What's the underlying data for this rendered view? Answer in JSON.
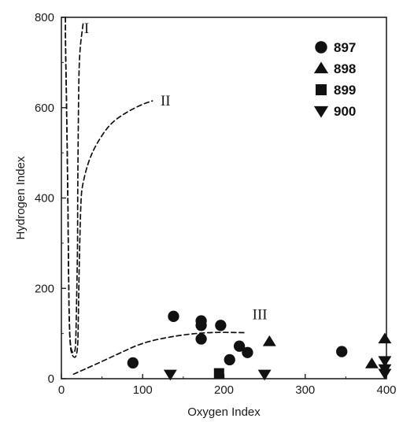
{
  "chart_data": {
    "type": "scatter",
    "title": "",
    "xlabel": "Oxygen Index",
    "ylabel": "Hydrogen Index",
    "xlim": [
      0,
      400
    ],
    "ylim": [
      0,
      800
    ],
    "xticks": [
      0,
      100,
      200,
      300,
      400
    ],
    "yticks": [
      0,
      200,
      400,
      600,
      800
    ],
    "grid": false,
    "legend_position": "top-right",
    "colors": {
      "ink": "#111111",
      "axis": "#222222"
    },
    "series": [
      {
        "name": "897",
        "marker": "circle",
        "points": [
          [
            88,
            35
          ],
          [
            138,
            138
          ],
          [
            172,
            128
          ],
          [
            172,
            118
          ],
          [
            172,
            88
          ],
          [
            196,
            118
          ],
          [
            207,
            42
          ],
          [
            219,
            72
          ],
          [
            229,
            58
          ],
          [
            345,
            60
          ]
        ]
      },
      {
        "name": "898",
        "marker": "triangle-up",
        "points": [
          [
            256,
            82
          ],
          [
            382,
            33
          ],
          [
            398,
            88
          ]
        ]
      },
      {
        "name": "899",
        "marker": "square",
        "points": [
          [
            194,
            12
          ]
        ]
      },
      {
        "name": "900",
        "marker": "triangle-down",
        "points": [
          [
            134,
            10
          ],
          [
            250,
            10
          ],
          [
            398,
            40
          ],
          [
            398,
            22
          ],
          [
            398,
            12
          ]
        ]
      }
    ],
    "reference_curves": [
      {
        "label": "I",
        "style": "dashed",
        "points": [
          [
            5,
            800
          ],
          [
            5,
            740
          ],
          [
            6,
            650
          ],
          [
            8,
            400
          ],
          [
            9,
            200
          ],
          [
            10,
            100
          ],
          [
            12,
            60
          ],
          [
            17,
            55
          ],
          [
            18,
            100
          ],
          [
            19,
            200
          ],
          [
            20,
            300
          ],
          [
            20,
            400
          ],
          [
            21,
            600
          ],
          [
            22,
            720
          ],
          [
            27,
            790
          ]
        ]
      },
      {
        "label": "II",
        "style": "dashed",
        "points": [
          [
            5,
            800
          ],
          [
            5,
            740
          ],
          [
            6,
            650
          ],
          [
            8,
            400
          ],
          [
            9,
            200
          ],
          [
            10,
            100
          ],
          [
            12,
            50
          ],
          [
            20,
            45
          ],
          [
            21,
            150
          ],
          [
            22,
            260
          ],
          [
            24,
            400
          ],
          [
            26,
            430
          ],
          [
            33,
            480
          ],
          [
            43,
            520
          ],
          [
            60,
            565
          ],
          [
            80,
            590
          ],
          [
            100,
            608
          ],
          [
            112,
            615
          ]
        ]
      },
      {
        "label": "III",
        "style": "dashed",
        "points": [
          [
            15,
            10
          ],
          [
            40,
            30
          ],
          [
            70,
            55
          ],
          [
            100,
            80
          ],
          [
            140,
            95
          ],
          [
            180,
            103
          ],
          [
            225,
            102
          ]
        ]
      }
    ],
    "curve_labels": [
      {
        "text": "I",
        "x": 28,
        "y": 765
      },
      {
        "text": "II",
        "x": 122,
        "y": 605
      },
      {
        "text": "III",
        "x": 235,
        "y": 132
      }
    ]
  }
}
